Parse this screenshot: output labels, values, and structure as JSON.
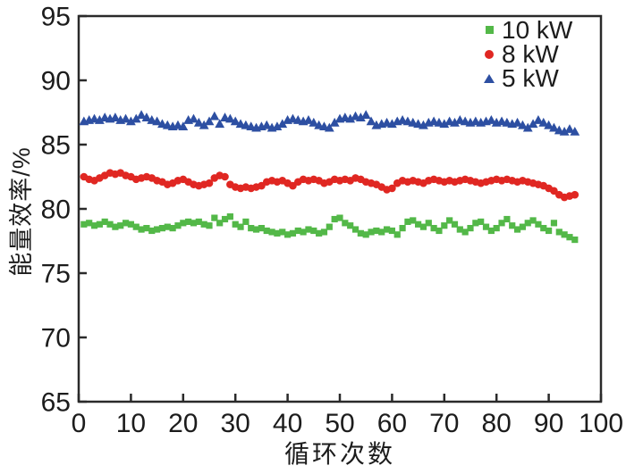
{
  "figure": {
    "background": "#ffffff",
    "frame_color": "#2a2a2a",
    "text_color": "#1c1c1c"
  },
  "chart_data": {
    "type": "scatter",
    "title": "",
    "xlabel": "循环次数",
    "ylabel": "能量效率/%",
    "xlim": [
      0,
      100
    ],
    "ylim": [
      65,
      95
    ],
    "x_ticks": [
      0,
      10,
      20,
      30,
      40,
      50,
      60,
      70,
      80,
      90,
      100
    ],
    "y_ticks": [
      65,
      70,
      75,
      80,
      85,
      90,
      95
    ],
    "grid": false,
    "legend_position": "top-right-inside",
    "x_start": 1,
    "x_step": 1,
    "series": [
      {
        "name": "10 kW",
        "marker": "square",
        "color": "#53b848",
        "values": [
          78.8,
          78.9,
          78.7,
          78.8,
          79.0,
          78.8,
          78.6,
          78.7,
          78.9,
          78.8,
          78.6,
          78.4,
          78.5,
          78.3,
          78.4,
          78.5,
          78.6,
          78.5,
          78.7,
          78.9,
          79.0,
          78.9,
          79.0,
          78.8,
          78.7,
          79.3,
          78.9,
          79.2,
          79.4,
          78.8,
          78.6,
          79.0,
          78.5,
          78.4,
          78.5,
          78.3,
          78.2,
          78.1,
          78.2,
          78.0,
          78.1,
          78.3,
          78.2,
          78.4,
          78.3,
          78.1,
          78.2,
          78.6,
          79.2,
          79.3,
          78.9,
          78.7,
          78.4,
          78.1,
          78.0,
          78.2,
          78.3,
          78.2,
          78.4,
          78.3,
          78.0,
          78.5,
          79.0,
          79.1,
          78.8,
          78.6,
          78.9,
          78.5,
          78.3,
          78.7,
          79.1,
          78.8,
          78.4,
          78.2,
          78.5,
          78.9,
          79.0,
          78.6,
          78.3,
          78.5,
          78.9,
          79.2,
          78.7,
          78.4,
          78.6,
          78.9,
          79.1,
          78.8,
          78.5,
          78.3,
          78.9,
          78.2,
          78.0,
          77.8,
          77.6
        ]
      },
      {
        "name": "8 kW",
        "marker": "circle",
        "color": "#e02722",
        "values": [
          82.5,
          82.3,
          82.2,
          82.4,
          82.6,
          82.8,
          82.7,
          82.8,
          82.6,
          82.5,
          82.3,
          82.4,
          82.5,
          82.4,
          82.2,
          82.1,
          81.9,
          82.0,
          82.2,
          82.3,
          82.1,
          81.9,
          81.8,
          81.9,
          82.0,
          82.4,
          82.6,
          82.5,
          81.9,
          81.7,
          81.6,
          81.7,
          81.6,
          81.7,
          81.8,
          82.1,
          82.2,
          82.1,
          82.2,
          82.0,
          81.8,
          82.1,
          82.3,
          82.2,
          82.3,
          82.2,
          82.0,
          82.1,
          82.3,
          82.2,
          82.3,
          82.2,
          82.4,
          82.3,
          82.1,
          82.0,
          81.9,
          81.7,
          81.5,
          81.6,
          82.0,
          82.2,
          82.1,
          82.2,
          82.1,
          82.0,
          82.2,
          82.3,
          82.2,
          82.1,
          82.2,
          82.1,
          82.2,
          82.3,
          82.2,
          82.1,
          82.0,
          82.1,
          82.2,
          82.3,
          82.2,
          82.3,
          82.2,
          82.1,
          82.2,
          82.1,
          82.0,
          81.9,
          81.8,
          81.6,
          81.4,
          81.1,
          80.9,
          81.0,
          81.1
        ]
      },
      {
        "name": "5 kW",
        "marker": "triangle",
        "color": "#2d4fa2",
        "values": [
          86.8,
          86.9,
          87.0,
          86.9,
          87.1,
          87.0,
          87.1,
          86.9,
          87.0,
          86.8,
          87.0,
          87.3,
          87.1,
          86.9,
          86.8,
          86.6,
          86.5,
          86.4,
          86.5,
          86.4,
          86.9,
          87.0,
          86.7,
          86.5,
          86.8,
          87.2,
          86.6,
          87.1,
          87.0,
          86.8,
          86.6,
          86.5,
          86.4,
          86.3,
          86.4,
          86.5,
          86.3,
          86.4,
          86.6,
          86.9,
          87.0,
          86.9,
          86.8,
          86.9,
          86.7,
          86.5,
          86.4,
          86.3,
          86.7,
          87.0,
          87.1,
          87.0,
          87.2,
          87.1,
          87.3,
          86.8,
          86.5,
          86.6,
          86.7,
          86.6,
          86.8,
          86.9,
          86.8,
          86.7,
          86.6,
          86.5,
          86.7,
          86.8,
          86.7,
          86.6,
          86.8,
          86.7,
          86.9,
          86.8,
          86.7,
          86.8,
          86.7,
          86.8,
          86.9,
          86.7,
          86.8,
          86.7,
          86.6,
          86.7,
          86.5,
          86.3,
          86.6,
          86.9,
          86.7,
          86.5,
          86.3,
          86.1,
          86.0,
          86.2,
          86.0
        ]
      }
    ]
  }
}
